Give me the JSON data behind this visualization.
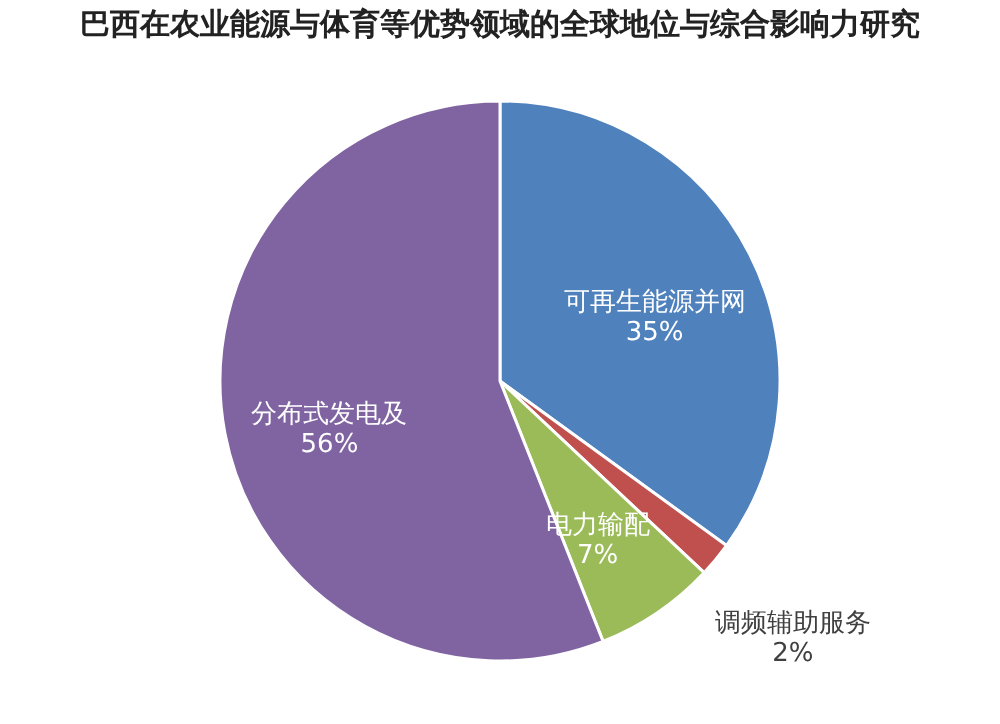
{
  "chart_data": {
    "type": "pie",
    "title": "巴西在农业能源与体育等优势领域的全球地位与综合影响力研究",
    "categories": [
      "可再生能源并网",
      "调频辅助服务",
      "电力输配",
      "分布式发电及"
    ],
    "values": [
      35,
      2,
      7,
      56
    ],
    "colors": [
      "#4f81bd",
      "#c0504d",
      "#9bbb59",
      "#8064a2"
    ],
    "value_labels": [
      "35%",
      "2%",
      "7%",
      "56%"
    ]
  }
}
